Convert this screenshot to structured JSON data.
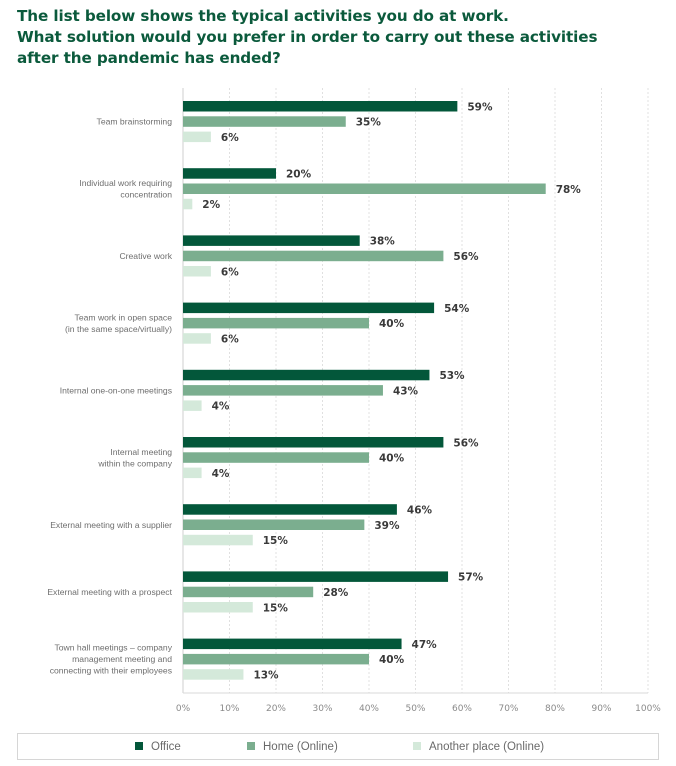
{
  "title_lines": [
    "The list below shows the typical activities you do at work.",
    "What solution would you prefer in order to carry out these activities",
    "after the pandemic has ended?"
  ],
  "colors": {
    "title": "#0b5a3c",
    "office": "#03573a",
    "home": "#7bae8f",
    "another": "#d4e9da"
  },
  "legend": [
    {
      "label": "Office",
      "color": "#03573a"
    },
    {
      "label": "Home (Online)",
      "color": "#7bae8f"
    },
    {
      "label": "Another place (Online)",
      "color": "#d4e9da"
    }
  ],
  "chart_data": {
    "type": "bar",
    "orientation": "horizontal",
    "title": "The list below shows the typical activities you do at work. What solution would you prefer in order to carry out these activities after the pandemic has ended?",
    "xlabel": "",
    "ylabel": "",
    "xlim": [
      0,
      100
    ],
    "x_ticks": [
      "0%",
      "10%",
      "20%",
      "30%",
      "40%",
      "50%",
      "60%",
      "70%",
      "80%",
      "90%",
      "100%"
    ],
    "grid": "vertical dashed",
    "legend_position": "bottom",
    "categories": [
      [
        "Team brainstorming"
      ],
      [
        "Individual work requiring",
        "concentration"
      ],
      [
        "Creative work"
      ],
      [
        "Team work in open space",
        "(in the same space/virtually)"
      ],
      [
        "Internal one-on-one meetings"
      ],
      [
        "Internal meeting",
        "within the company"
      ],
      [
        "External meeting with a supplier"
      ],
      [
        "External meeting with a prospect"
      ],
      [
        "Town hall meetings – company",
        "management meeting and",
        "connecting with their employees"
      ]
    ],
    "series": [
      {
        "name": "Office",
        "values": [
          59,
          20,
          38,
          54,
          53,
          56,
          46,
          57,
          47
        ]
      },
      {
        "name": "Home (Online)",
        "values": [
          35,
          78,
          56,
          40,
          43,
          40,
          39,
          28,
          40
        ]
      },
      {
        "name": "Another place (Online)",
        "values": [
          6,
          2,
          6,
          6,
          4,
          4,
          15,
          15,
          13
        ]
      }
    ],
    "value_suffix": "%"
  }
}
